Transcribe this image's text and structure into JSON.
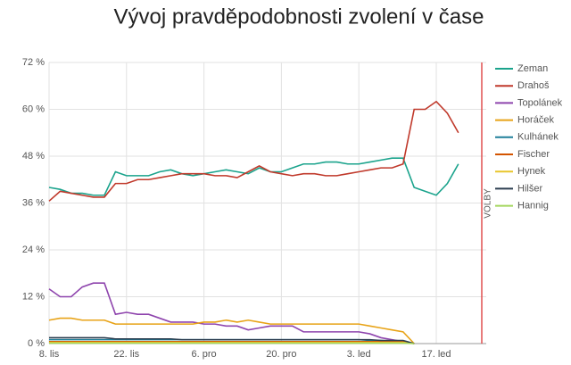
{
  "chart_data": {
    "type": "line",
    "title": "Vývoj pravděpodobnosti zvolení v čase",
    "x": [
      "8. lis",
      null,
      null,
      null,
      null,
      null,
      null,
      "22. lis",
      null,
      null,
      null,
      null,
      null,
      null,
      "6. pro",
      null,
      null,
      null,
      null,
      null,
      null,
      "20. pro",
      null,
      null,
      null,
      null,
      null,
      null,
      "3. led",
      null,
      null,
      null,
      null,
      null,
      null,
      "17. led",
      null,
      null
    ],
    "ylim": [
      0,
      72
    ],
    "yticks": [
      {
        "value": 0,
        "label": "0 %"
      },
      {
        "value": 12,
        "label": "12 %"
      },
      {
        "value": 24,
        "label": "24 %"
      },
      {
        "value": 36,
        "label": "36 %"
      },
      {
        "value": 48,
        "label": "48 %"
      },
      {
        "value": 60,
        "label": "60 %"
      },
      {
        "value": 72,
        "label": "72 %"
      }
    ],
    "grid": true,
    "legend": "right",
    "annotation": "VOLBY",
    "series": [
      {
        "name": "Zeman",
        "color": "#1aa38c",
        "values": [
          40,
          39.5,
          38.5,
          38.5,
          38,
          38,
          44,
          43,
          43,
          43,
          44,
          44.5,
          43.5,
          43,
          43.5,
          44,
          44.5,
          44,
          43.5,
          45,
          44,
          44,
          45,
          46,
          46,
          46.5,
          46.5,
          46,
          46,
          46.5,
          47,
          47.5,
          47.5,
          40,
          39,
          38,
          41,
          46
        ]
      },
      {
        "name": "Drahoš",
        "color": "#c0392b",
        "values": [
          36.5,
          39,
          38.5,
          38,
          37.5,
          37.5,
          41,
          41,
          42,
          42,
          42.5,
          43,
          43.5,
          43.5,
          43.5,
          43,
          43,
          42.5,
          44,
          45.5,
          44,
          43.5,
          43,
          43.5,
          43.5,
          43,
          43,
          43.5,
          44,
          44.5,
          45,
          45,
          46,
          60,
          60,
          62,
          59,
          54
        ]
      },
      {
        "name": "Topolánek",
        "color": "#8e44ad",
        "values": [
          14,
          12,
          12,
          14.5,
          15.5,
          15.5,
          7.5,
          8,
          7.5,
          7.5,
          6.5,
          5.5,
          5.5,
          5.5,
          5,
          5,
          4.5,
          4.5,
          3.5,
          4,
          4.5,
          4.5,
          4.5,
          3,
          3,
          3,
          3,
          3,
          3,
          2.5,
          1.5,
          1,
          0.5,
          0,
          null,
          null,
          null,
          null
        ]
      },
      {
        "name": "Horáček",
        "color": "#e8a317",
        "values": [
          6,
          6.5,
          6.5,
          6,
          6,
          6,
          5,
          5,
          5,
          5,
          5,
          5,
          5,
          5,
          5.5,
          5.5,
          6,
          5.5,
          6,
          5.5,
          5,
          5,
          5,
          5,
          5,
          5,
          5,
          5,
          5,
          4.5,
          4,
          3.5,
          3,
          0,
          null,
          null,
          null,
          null
        ]
      },
      {
        "name": "Kulhánek",
        "color": "#1f7f9a",
        "values": [
          1,
          1,
          1,
          1,
          1,
          1,
          1,
          1,
          1,
          1,
          1,
          1,
          1,
          1,
          1,
          1,
          1,
          1,
          1,
          1,
          1,
          1,
          1,
          1,
          1,
          1,
          1,
          1,
          1,
          0.8,
          0.8,
          0.6,
          0.5,
          0,
          null,
          null,
          null,
          null
        ]
      },
      {
        "name": "Fischer",
        "color": "#d35400",
        "values": [
          0.5,
          0.5,
          0.5,
          0.5,
          0.5,
          0.5,
          0.5,
          0.5,
          0.5,
          0.5,
          0.5,
          0.5,
          0.5,
          0.5,
          0.5,
          0.5,
          0.5,
          0.5,
          0.5,
          0.5,
          0.5,
          0.5,
          0.5,
          0.5,
          0.5,
          0.5,
          0.5,
          0.5,
          0.5,
          0.5,
          0.5,
          0.5,
          0.5,
          0,
          null,
          null,
          null,
          null
        ]
      },
      {
        "name": "Hynek",
        "color": "#e8c62c",
        "values": [
          0.3,
          0.3,
          0.3,
          0.3,
          0.3,
          0.3,
          0.3,
          0.3,
          0.3,
          0.3,
          0.3,
          0.3,
          0.3,
          0.3,
          0.3,
          0.3,
          0.3,
          0.3,
          0.3,
          0.3,
          0.3,
          0.3,
          0.3,
          0.3,
          0.3,
          0.3,
          0.3,
          0.3,
          0.3,
          0.3,
          0.3,
          0.3,
          0.3,
          0,
          null,
          null,
          null,
          null
        ]
      },
      {
        "name": "Hilšer",
        "color": "#2c3e50",
        "values": [
          1.5,
          1.5,
          1.5,
          1.5,
          1.5,
          1.5,
          1.2,
          1.2,
          1.2,
          1.2,
          1.2,
          1.2,
          1,
          1,
          1,
          1,
          1,
          1,
          1,
          1,
          1,
          1,
          1,
          1,
          1,
          1,
          1,
          1,
          1,
          1,
          0.8,
          0.8,
          0.8,
          0,
          null,
          null,
          null,
          null
        ]
      },
      {
        "name": "Hannig",
        "color": "#a4d65e",
        "values": [
          0.1,
          0.1,
          0.1,
          0.1,
          0.1,
          0.1,
          0.1,
          0.1,
          0.1,
          0.1,
          0.1,
          0.1,
          0.1,
          0.1,
          0.1,
          0.1,
          0.1,
          0.1,
          0.1,
          0.1,
          0.1,
          0.1,
          0.1,
          0.1,
          0.1,
          0.1,
          0.1,
          0.1,
          0.1,
          0.1,
          0.1,
          0.1,
          0.1,
          0,
          null,
          null,
          null,
          null
        ]
      }
    ]
  }
}
